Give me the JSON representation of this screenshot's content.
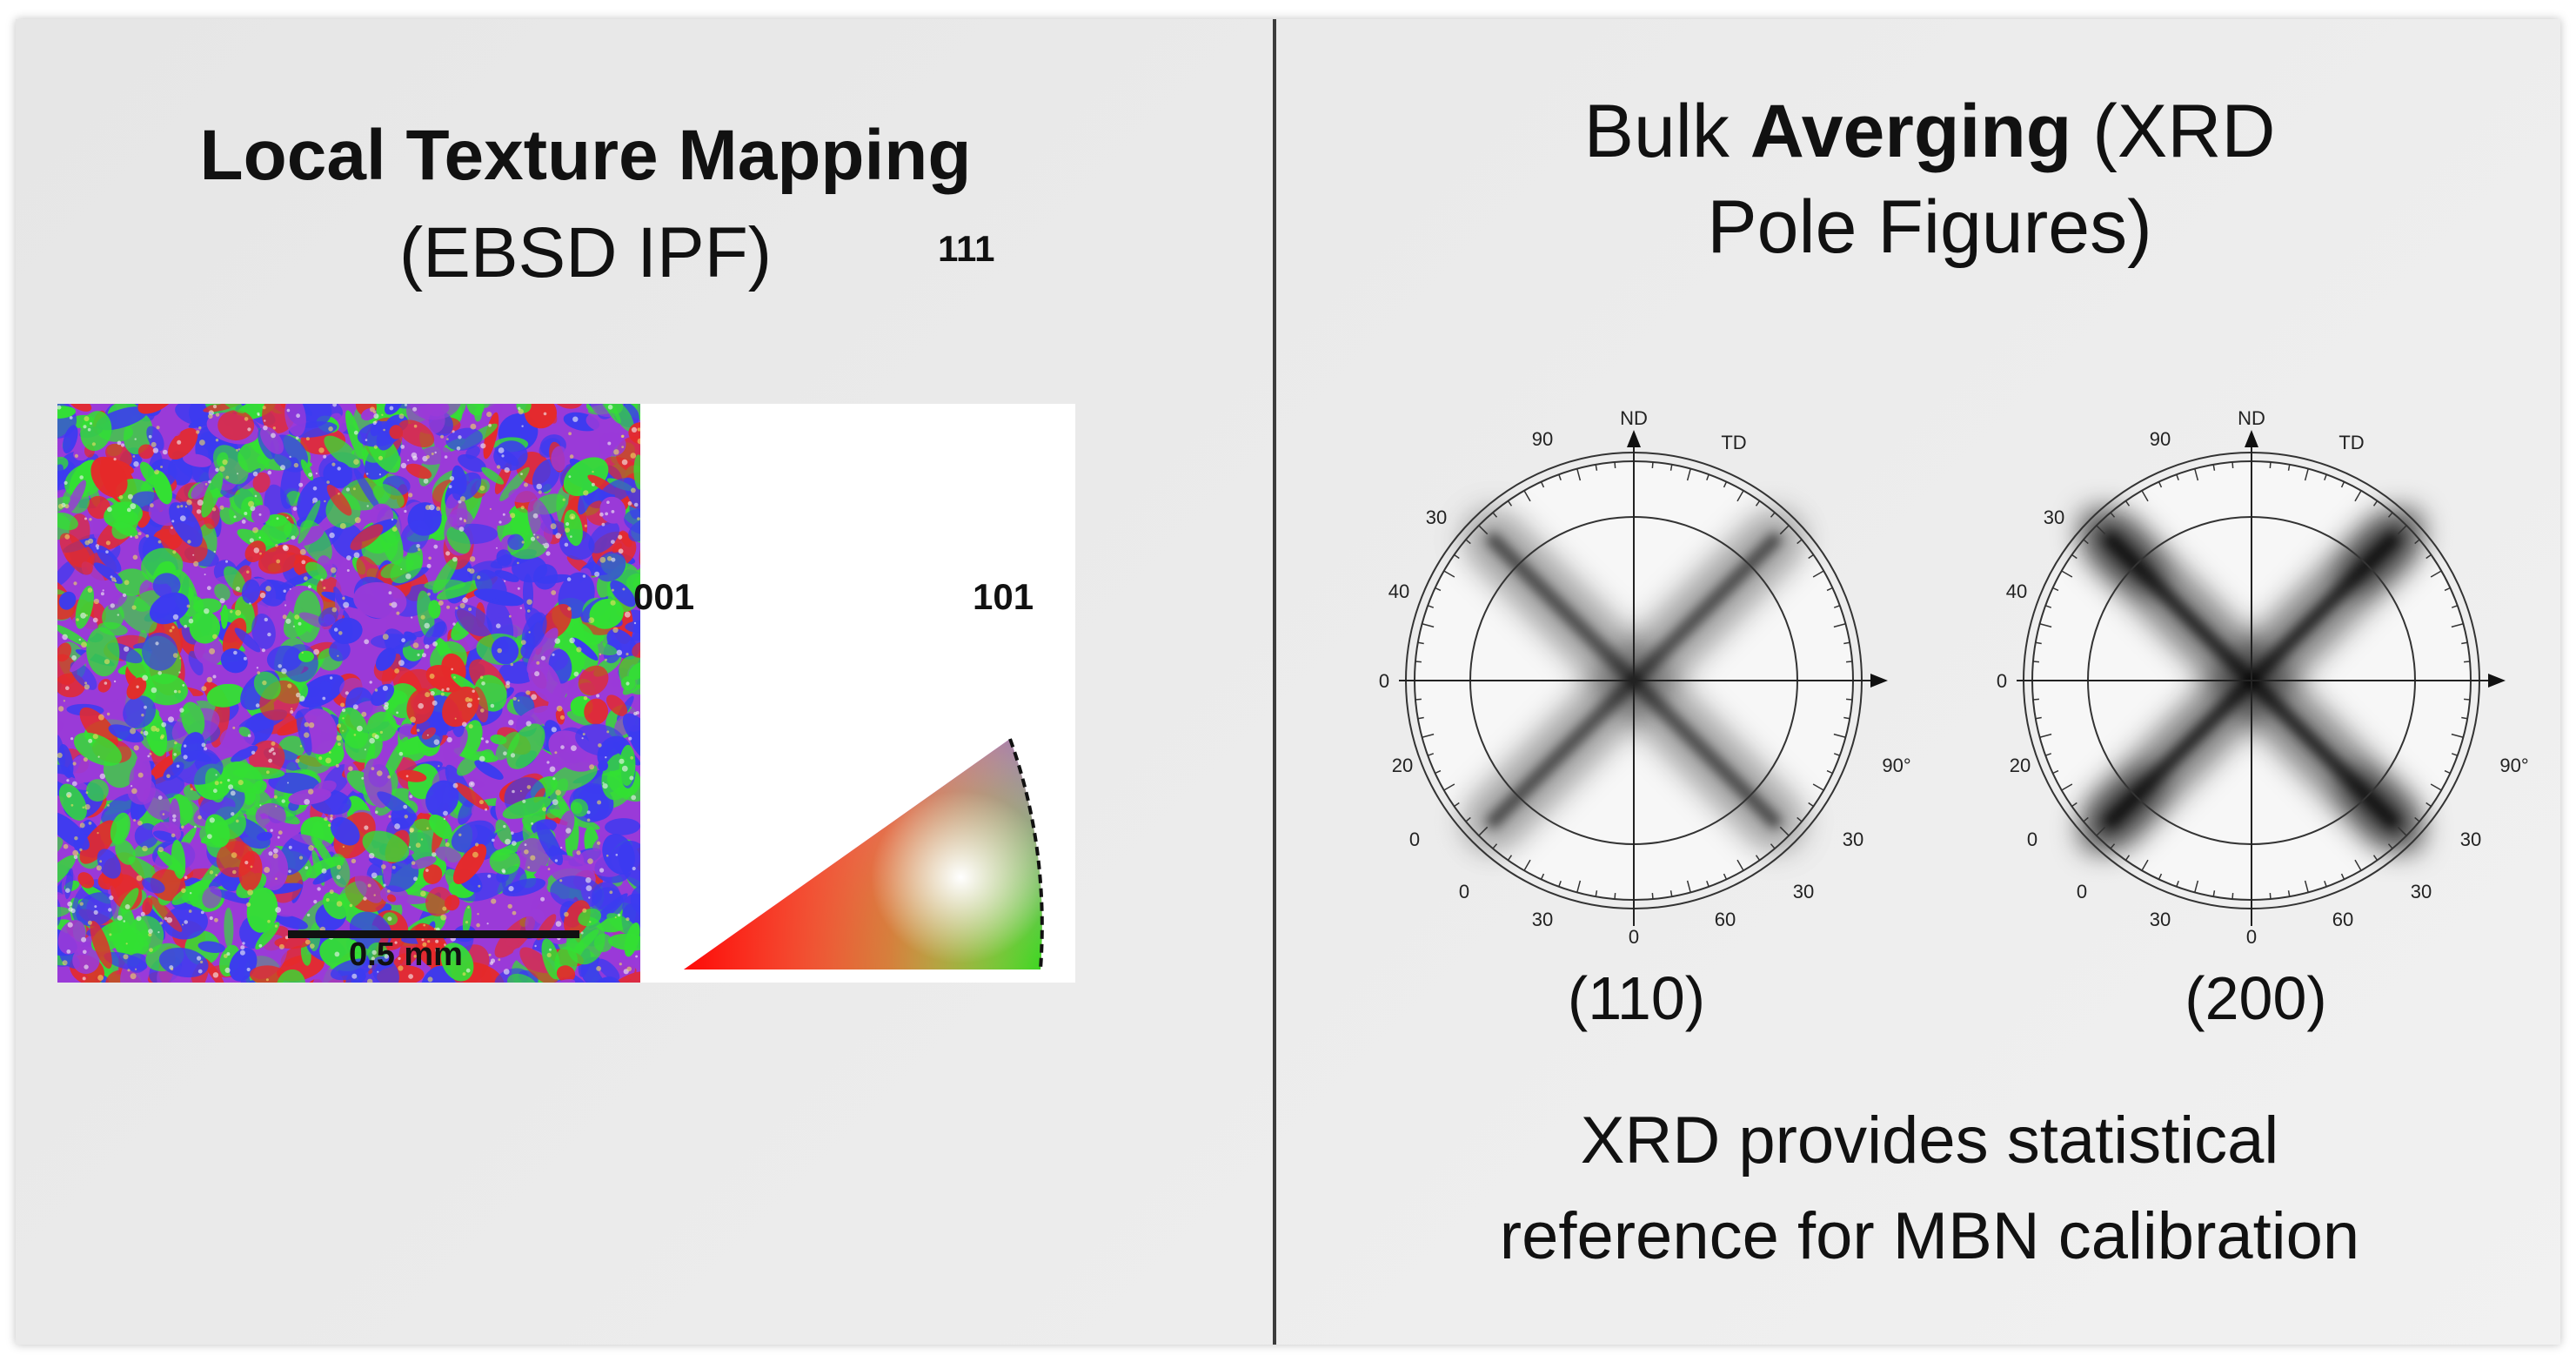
{
  "left": {
    "title_bold": "Local Texture Mapping",
    "title_sub": "(EBSD IPF)",
    "scale_bar_label": "0.5 mm",
    "ipf_labels": {
      "top": "111",
      "left": "001",
      "right": "101"
    }
  },
  "right": {
    "title_line1_prefix": "Bulk ",
    "title_line1_bold": "Averging",
    "title_line1_suffix": " (XRD",
    "title_line2": "Pole Figures)",
    "pole_figures": [
      {
        "caption": "(110)",
        "intensity": 0.55
      },
      {
        "caption": "(200)",
        "intensity": 1.0
      }
    ],
    "pole_labels": {
      "top": "ND",
      "top_left": "90",
      "top_right": "TD",
      "left_upper": "30",
      "left_mid": "40",
      "left_center": "0",
      "left_lower": "20",
      "lower_left_1": "0",
      "lower_left_2": "0",
      "bottom_left": "30",
      "bottom": "0",
      "bottom_right": "60",
      "right_lower_1": "30",
      "right_lower_2": "30",
      "right": "90°"
    },
    "note_line1": "XRD provides statistical",
    "note_line2": "reference for MBN calibration"
  },
  "colors": {
    "background": "#ececec",
    "divider": "#3c3c3c",
    "ebsd_red": "#e52a2a",
    "ebsd_green": "#33e033",
    "ebsd_blue": "#3b3bf0",
    "ebsd_purple": "#9a3ad8"
  }
}
